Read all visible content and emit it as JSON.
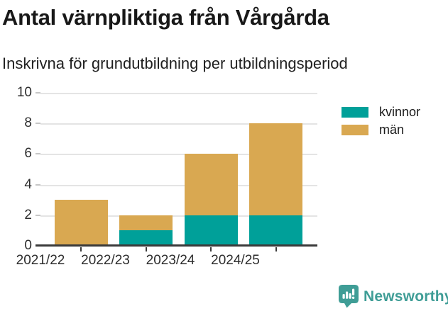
{
  "header": {
    "title": "Antal värnpliktiga från Vårgårda",
    "subtitle": "Inskrivna för grundutbildning per utbildningsperiod"
  },
  "chart_data": {
    "type": "bar",
    "stacked": true,
    "categories": [
      "2021/22",
      "2022/23",
      "2023/24",
      "2024/25"
    ],
    "series": [
      {
        "name": "kvinnor",
        "color": "#00a099",
        "values": [
          0,
          1,
          2,
          2
        ]
      },
      {
        "name": "män",
        "color": "#d9a851",
        "values": [
          3,
          1,
          4,
          6
        ]
      }
    ],
    "totals": [
      3,
      2,
      6,
      8
    ],
    "title": "Antal värnpliktiga från Vårgårda",
    "subtitle": "Inskrivna för grundutbildning per utbildningsperiod",
    "xlabel": "",
    "ylabel": "",
    "ylim": [
      0,
      10
    ],
    "yticks": [
      0,
      2,
      4,
      6,
      8,
      10
    ],
    "grid": true,
    "legend_position": "top-right"
  },
  "footer": {
    "brand": "Newsworthy",
    "brand_color": "#3f9d96"
  }
}
